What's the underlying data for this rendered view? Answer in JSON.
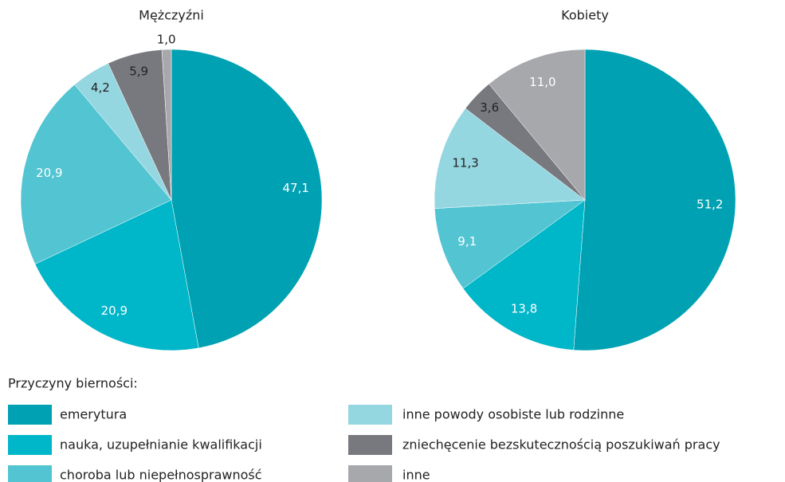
{
  "chart_data": [
    {
      "type": "pie",
      "title": "Mężczyźni",
      "categories": [
        "emerytura",
        "nauka, uzupełnianie kwalifikacji",
        "choroba lub niepełnosprawność",
        "inne powody osobiste lub rodzinne",
        "zniechęcenie bezskutecznością poszukiwań pracy",
        "inne"
      ],
      "values": [
        47.1,
        20.9,
        20.9,
        4.2,
        5.9,
        1.0
      ],
      "value_labels": [
        "47,1",
        "20,9",
        "20,9",
        "4,2",
        "5,9",
        "1,0"
      ],
      "colors": [
        "#00a1b2",
        "#00b6c9",
        "#52c4d2",
        "#95d7e1",
        "#77797e",
        "#a6a8ac"
      ]
    },
    {
      "type": "pie",
      "title": "Kobiety",
      "categories": [
        "emerytura",
        "nauka, uzupełnianie kwalifikacji",
        "choroba lub niepełnosprawność",
        "inne powody osobiste lub rodzinne",
        "zniechęcenie bezskutecznością poszukiwań pracy",
        "inne"
      ],
      "values": [
        51.2,
        13.8,
        9.1,
        11.3,
        3.6,
        11.0
      ],
      "value_labels": [
        "51,2",
        "13,8",
        "9,1",
        "11,3",
        "3,6",
        "11,0"
      ],
      "colors": [
        "#00a1b2",
        "#00b6c9",
        "#52c4d2",
        "#95d7e1",
        "#77797e",
        "#a6a8ac"
      ]
    }
  ],
  "legend": {
    "title": "Przyczyny bierności:"
  }
}
